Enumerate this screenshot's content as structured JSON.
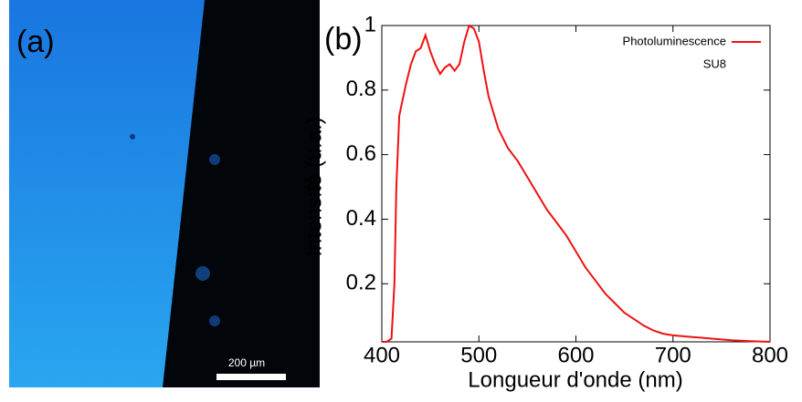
{
  "panel_a": {
    "label": "(a)",
    "scale_bar": "200 µm"
  },
  "chart_data": {
    "type": "line",
    "panel_label": "(b)",
    "xlabel": "Longueur d'onde (nm)",
    "ylabel": "Intensité (u.a.)",
    "xlim": [
      400,
      800
    ],
    "ylim": [
      0.02,
      1
    ],
    "xticks": [
      400,
      500,
      600,
      700,
      800
    ],
    "yticks": [
      0.2,
      0.4,
      0.6,
      0.8,
      1
    ],
    "legend": "top-right",
    "legend_subtitle": "SU8",
    "x": [
      400,
      405,
      410,
      413,
      415,
      418,
      420,
      425,
      430,
      435,
      440,
      445,
      450,
      455,
      460,
      465,
      470,
      475,
      480,
      485,
      490,
      495,
      500,
      505,
      510,
      520,
      530,
      540,
      550,
      560,
      570,
      580,
      590,
      600,
      610,
      620,
      630,
      640,
      650,
      660,
      670,
      680,
      690,
      700,
      720,
      740,
      760,
      780,
      800
    ],
    "series": [
      {
        "name": "Photoluminescence",
        "color": "#ee1111",
        "values": [
          0.02,
          0.02,
          0.03,
          0.2,
          0.5,
          0.72,
          0.75,
          0.82,
          0.88,
          0.92,
          0.93,
          0.97,
          0.92,
          0.88,
          0.85,
          0.87,
          0.88,
          0.86,
          0.88,
          0.95,
          1.0,
          0.99,
          0.95,
          0.86,
          0.78,
          0.68,
          0.62,
          0.58,
          0.53,
          0.48,
          0.43,
          0.39,
          0.35,
          0.3,
          0.25,
          0.21,
          0.17,
          0.14,
          0.11,
          0.09,
          0.07,
          0.055,
          0.045,
          0.04,
          0.035,
          0.03,
          0.025,
          0.022,
          0.02
        ]
      }
    ]
  }
}
